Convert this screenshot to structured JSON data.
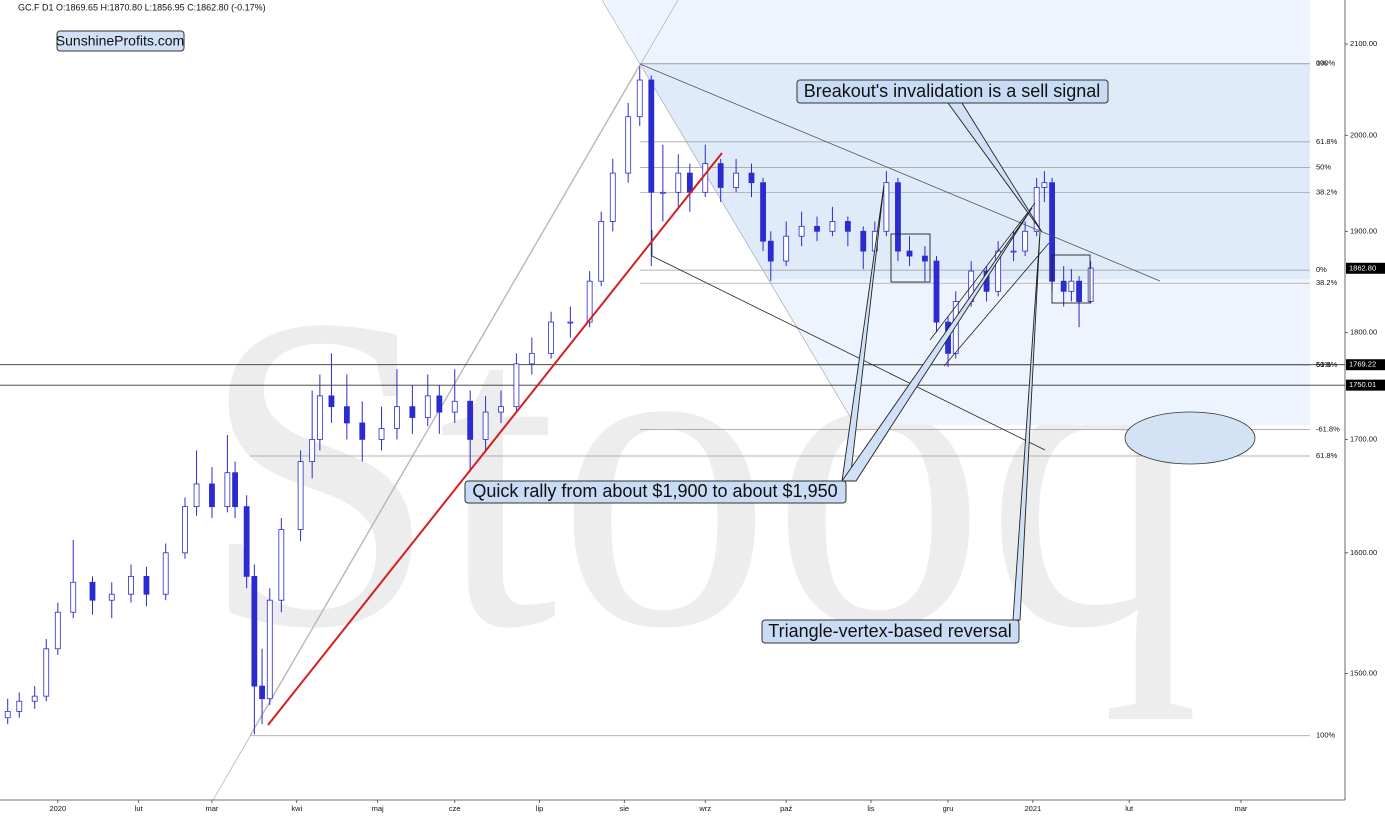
{
  "header": "GC.F  D1  O:1869.65  H:1870.80  L:1856.95  C:1862.80  (-0.17%)",
  "brand": "SunshineProfits.com",
  "watermark": "Stooq",
  "chart_data": {
    "type": "candlestick",
    "color": "#2b2bd0",
    "log_scale": true,
    "x": [
      -13,
      -10,
      -6,
      -3,
      0,
      4,
      9,
      14,
      19,
      23,
      28,
      33,
      36,
      40,
      44,
      46,
      49,
      51,
      53,
      55,
      58,
      63,
      66,
      68,
      71,
      75,
      79,
      84,
      88,
      92,
      96,
      99,
      103,
      107,
      111,
      115,
      119,
      123,
      128,
      133,
      138,
      141,
      144,
      148,
      151,
      154,
      157,
      161,
      164,
      168,
      172,
      176,
      180,
      183,
      185,
      189,
      193,
      197,
      201,
      205,
      209,
      212,
      215,
      218,
      221,
      225,
      228,
      231,
      233,
      237,
      241,
      244,
      248,
      251,
      254,
      256,
      258,
      261,
      263,
      265,
      268
    ],
    "open": [
      1465,
      1470,
      1478,
      1482,
      1520,
      1550,
      1575,
      1560,
      1565,
      1580,
      1565,
      1600,
      1640,
      1660,
      1640,
      1670,
      1640,
      1580,
      1490,
      1480,
      1560,
      1620,
      1680,
      1700,
      1740,
      1730,
      1715,
      1700,
      1710,
      1730,
      1720,
      1740,
      1725,
      1735,
      1700,
      1725,
      1730,
      1770,
      1780,
      1810,
      1810,
      1850,
      1910,
      1960,
      2020,
      2060,
      1940,
      1940,
      1960,
      1940,
      1970,
      1945,
      1960,
      1950,
      1890,
      1870,
      1895,
      1905,
      1900,
      1910,
      1900,
      1880,
      1900,
      1950,
      1880,
      1875,
      1870,
      1810,
      1780,
      1830,
      1860,
      1840,
      1880,
      1880,
      1900,
      1945,
      1950,
      1850,
      1840,
      1850,
      1830
    ],
    "high": [
      1480,
      1485,
      1490,
      1528,
      1558,
      1611,
      1580,
      1575,
      1590,
      1588,
      1608,
      1648,
      1690,
      1675,
      1704,
      1680,
      1650,
      1590,
      1520,
      1570,
      1630,
      1690,
      1745,
      1760,
      1780,
      1760,
      1735,
      1730,
      1765,
      1750,
      1760,
      1750,
      1765,
      1745,
      1740,
      1745,
      1780,
      1795,
      1820,
      1825,
      1860,
      1920,
      1975,
      2035,
      2075,
      2065,
      1990,
      1980,
      1970,
      1990,
      1975,
      1975,
      1970,
      1955,
      1900,
      1910,
      1920,
      1915,
      1925,
      1915,
      1905,
      1910,
      1962,
      1955,
      1895,
      1885,
      1875,
      1815,
      1840,
      1870,
      1865,
      1890,
      1900,
      1910,
      1955,
      1962,
      1955,
      1865,
      1862,
      1855,
      1870
    ],
    "low": [
      1460,
      1465,
      1472,
      1478,
      1515,
      1545,
      1548,
      1545,
      1558,
      1555,
      1560,
      1595,
      1632,
      1630,
      1635,
      1630,
      1570,
      1452,
      1460,
      1475,
      1550,
      1610,
      1665,
      1690,
      1715,
      1700,
      1680,
      1690,
      1700,
      1705,
      1712,
      1705,
      1715,
      1672,
      1690,
      1715,
      1725,
      1760,
      1775,
      1795,
      1805,
      1845,
      1900,
      1950,
      2010,
      1865,
      1910,
      1925,
      1920,
      1935,
      1930,
      1940,
      1935,
      1880,
      1850,
      1865,
      1885,
      1890,
      1895,
      1885,
      1862,
      1875,
      1895,
      1870,
      1865,
      1850,
      1800,
      1767,
      1775,
      1825,
      1830,
      1835,
      1870,
      1875,
      1895,
      1930,
      1840,
      1825,
      1830,
      1805,
      1828
    ],
    "close": [
      1470,
      1478,
      1482,
      1520,
      1550,
      1575,
      1560,
      1565,
      1580,
      1565,
      1600,
      1640,
      1660,
      1640,
      1670,
      1640,
      1580,
      1490,
      1480,
      1560,
      1620,
      1680,
      1700,
      1740,
      1730,
      1715,
      1700,
      1710,
      1730,
      1720,
      1740,
      1725,
      1735,
      1700,
      1725,
      1730,
      1770,
      1780,
      1810,
      1810,
      1850,
      1910,
      1960,
      2020,
      2060,
      1940,
      1940,
      1960,
      1940,
      1970,
      1945,
      1960,
      1950,
      1890,
      1870,
      1895,
      1905,
      1900,
      1910,
      1900,
      1880,
      1900,
      1950,
      1880,
      1875,
      1870,
      1810,
      1780,
      1830,
      1860,
      1840,
      1880,
      1880,
      1900,
      1945,
      1950,
      1850,
      1840,
      1850,
      1830,
      1863
    ],
    "xlim": [
      -15,
      334
    ],
    "xticks": [
      {
        "value": 0,
        "label": "2020"
      },
      {
        "value": 21,
        "label": "lut"
      },
      {
        "value": 40,
        "label": "mar"
      },
      {
        "value": 62,
        "label": "kwi"
      },
      {
        "value": 83,
        "label": "maj"
      },
      {
        "value": 103,
        "label": "cze"
      },
      {
        "value": 125,
        "label": "lip"
      },
      {
        "value": 147,
        "label": "sie"
      },
      {
        "value": 168,
        "label": "wrz"
      },
      {
        "value": 189,
        "label": "paź"
      },
      {
        "value": 211,
        "label": "lis"
      },
      {
        "value": 231,
        "label": "gru"
      },
      {
        "value": 253,
        "label": "2021"
      },
      {
        "value": 278,
        "label": "lut"
      },
      {
        "value": 307,
        "label": "mar"
      }
    ],
    "ylim": [
      1402,
      2150
    ],
    "yticks": [
      {
        "value": 2100,
        "label": "2100.00"
      },
      {
        "value": 2000,
        "label": "2000.00"
      },
      {
        "value": 1900,
        "label": "1900.00"
      },
      {
        "value": 1800,
        "label": "1800.00"
      },
      {
        "value": 1700,
        "label": "1700.00"
      },
      {
        "value": 1600,
        "label": "1600.00"
      },
      {
        "value": 1500,
        "label": "1500.00"
      }
    ],
    "fib_levels": [
      {
        "value": 2078,
        "label": "0%"
      },
      {
        "value": 2078,
        "label": "100%"
      },
      {
        "value": 1993,
        "label": "61.8%"
      },
      {
        "value": 1966,
        "label": "50%"
      },
      {
        "value": 1940,
        "label": "38.2%"
      },
      {
        "value": 1861,
        "label": "0%"
      },
      {
        "value": 1848,
        "label": "38.2%"
      },
      {
        "value": 1769,
        "label": "50%"
      },
      {
        "value": 1769,
        "label": "61.8%"
      },
      {
        "value": 1709,
        "label": "-61.8%"
      },
      {
        "value": 1685,
        "label": "61.8%"
      },
      {
        "value": 1451,
        "label": "100%"
      }
    ],
    "price_lines": [
      1769.22,
      1750.01
    ],
    "last_price": {
      "value": 1862.8,
      "label": "1862.80"
    },
    "annotations": [
      "Breakout's invalidation is a sell signal",
      "Quick rally from about $1,900 to about $1,950",
      "Triangle-vertex-based reversal"
    ]
  }
}
